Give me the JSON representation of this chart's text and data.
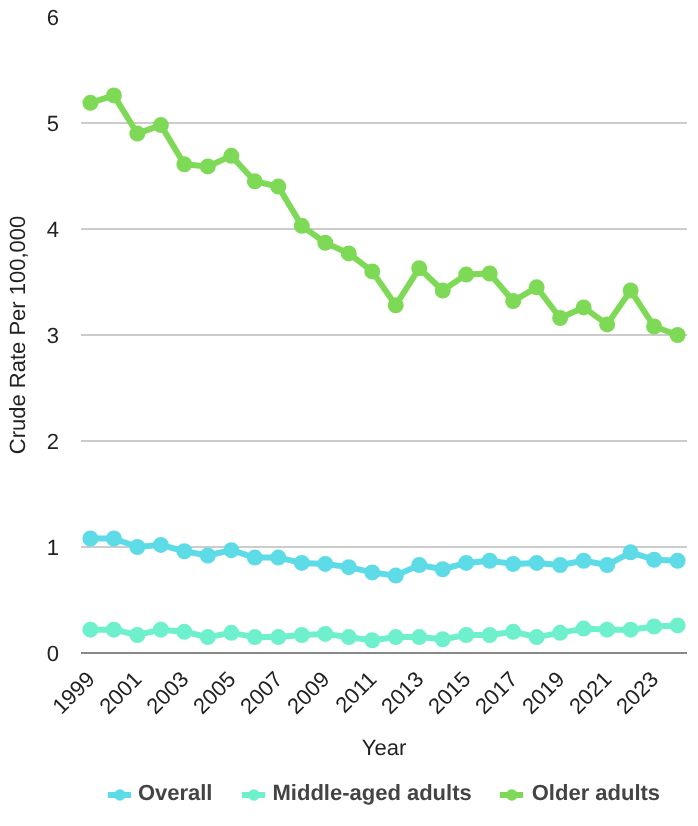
{
  "chart_data": {
    "type": "line",
    "xlabel": "Year",
    "ylabel": "Crude Rate Per 100,000",
    "x": [
      1999,
      2000,
      2001,
      2002,
      2003,
      2004,
      2005,
      2006,
      2007,
      2008,
      2009,
      2010,
      2011,
      2012,
      2013,
      2014,
      2015,
      2016,
      2017,
      2018,
      2019,
      2020,
      2021,
      2022,
      2023,
      2024
    ],
    "xlim": [
      1998.6,
      2024.4
    ],
    "xticks": [
      1999,
      2001,
      2003,
      2005,
      2007,
      2009,
      2011,
      2013,
      2015,
      2017,
      2019,
      2021,
      2023
    ],
    "ylim": [
      0,
      6
    ],
    "yticks": [
      0,
      1,
      2,
      3,
      4,
      5,
      6
    ],
    "grid": "y",
    "legend": "bottom",
    "marker": "circle",
    "line_style": "solid",
    "series": [
      {
        "name": "Overall",
        "color": "#5ddbe6",
        "values": [
          1.08,
          1.08,
          1.0,
          1.02,
          0.96,
          0.92,
          0.97,
          0.9,
          0.9,
          0.85,
          0.84,
          0.81,
          0.76,
          0.73,
          0.83,
          0.79,
          0.85,
          0.87,
          0.84,
          0.85,
          0.83,
          0.87,
          0.83,
          0.95,
          0.88,
          0.87
        ]
      },
      {
        "name": "Middle-aged adults",
        "color": "#6ef0cc",
        "values": [
          0.22,
          0.22,
          0.17,
          0.22,
          0.2,
          0.15,
          0.19,
          0.15,
          0.15,
          0.17,
          0.18,
          0.15,
          0.12,
          0.15,
          0.15,
          0.13,
          0.17,
          0.17,
          0.2,
          0.15,
          0.19,
          0.23,
          0.22,
          0.22,
          0.25,
          0.26
        ]
      },
      {
        "name": "Older adults",
        "color": "#7ed957",
        "values": [
          5.19,
          5.26,
          4.9,
          4.98,
          4.61,
          4.59,
          4.69,
          4.45,
          4.4,
          4.03,
          3.87,
          3.77,
          3.6,
          3.28,
          3.63,
          3.42,
          3.57,
          3.58,
          3.32,
          3.45,
          3.16,
          3.26,
          3.1,
          3.42,
          3.08,
          3.0
        ]
      }
    ]
  }
}
